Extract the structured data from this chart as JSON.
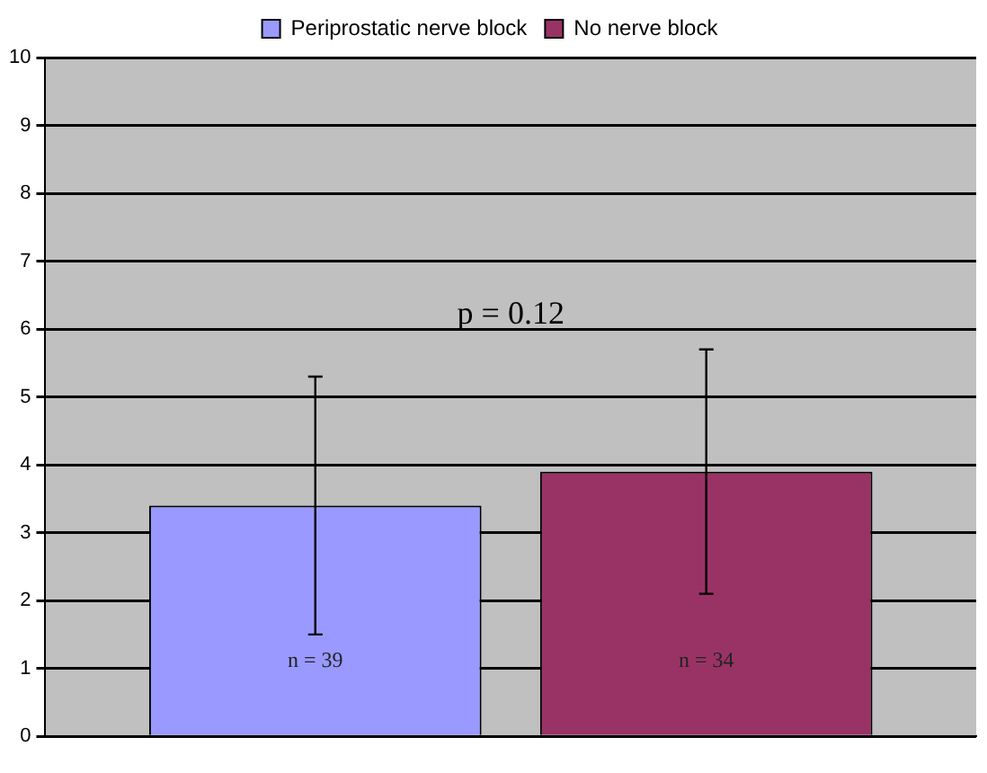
{
  "chart_data": {
    "type": "bar",
    "categories": [
      null
    ],
    "series": [
      {
        "name": "Periprostatic nerve block",
        "color": "#9999ff",
        "values": [
          3.4
        ],
        "errors": [
          1.9
        ]
      },
      {
        "name": "No nerve block",
        "color": "#993366",
        "values": [
          3.9
        ],
        "errors": [
          1.8
        ]
      }
    ],
    "ylim": [
      0,
      10
    ],
    "yticks": [
      0,
      1,
      2,
      3,
      4,
      5,
      6,
      7,
      8,
      9,
      10
    ],
    "grid": "y",
    "legend": "top",
    "annotations": [
      "p = 0.12",
      "n = 39",
      "n = 34"
    ]
  }
}
